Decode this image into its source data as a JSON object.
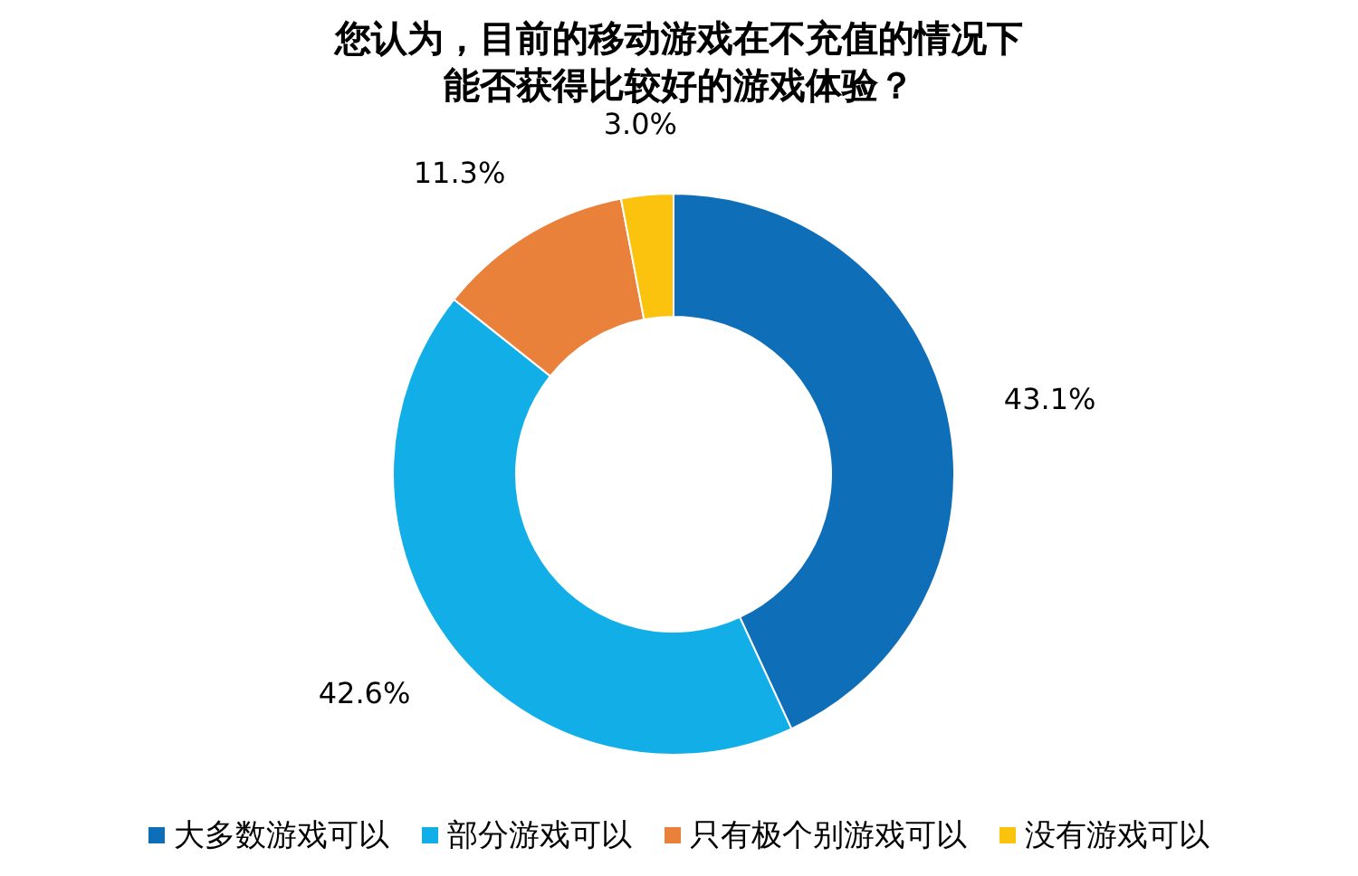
{
  "chart_data": {
    "type": "donut",
    "title": "您认为，目前的移动游戏在不充值的情况下能否获得比较好的游戏体验？",
    "categories": [
      "大多数游戏可以",
      "部分游戏可以",
      "只有极个别游戏可以",
      "没有游戏可以"
    ],
    "values": [
      43.1,
      42.6,
      11.3,
      3.0
    ],
    "colors": [
      "#0e6eb8",
      "#12aee8",
      "#e9813a",
      "#fbc20e"
    ],
    "value_labels": [
      "43.1%",
      "42.6%",
      "11.3%",
      "3.0%"
    ],
    "legend": "bottom"
  }
}
